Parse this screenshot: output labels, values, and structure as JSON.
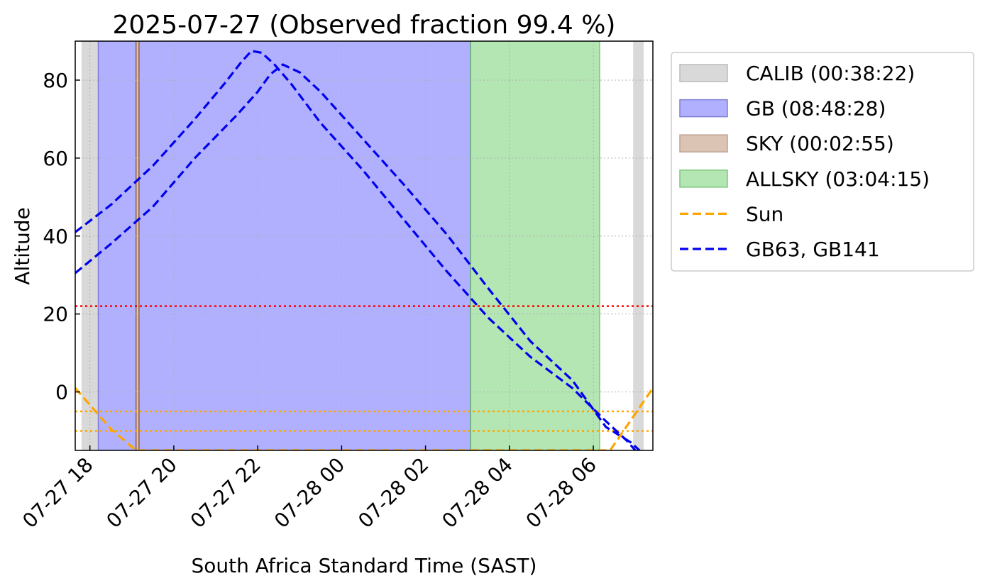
{
  "chart_data": {
    "type": "line",
    "title": "2025-07-27 (Observed fraction 99.4 %)",
    "xlabel": "South Africa Standard Time (SAST)",
    "ylabel": "Altitude",
    "x_unit": "hours (SAST) from 2025-07-27 00:00",
    "xlim": [
      17.65,
      31.42
    ],
    "ylim": [
      -15,
      90
    ],
    "grid": true,
    "legend_position": "outside-right",
    "x_ticks": [
      {
        "value": 18,
        "label": "07-27 18"
      },
      {
        "value": 20,
        "label": "07-27 20"
      },
      {
        "value": 22,
        "label": "07-27 22"
      },
      {
        "value": 24,
        "label": "07-28 00"
      },
      {
        "value": 26,
        "label": "07-28 02"
      },
      {
        "value": 28,
        "label": "07-28 04"
      },
      {
        "value": 30,
        "label": "07-28 06"
      }
    ],
    "y_ticks": [
      {
        "value": 0,
        "label": "0"
      },
      {
        "value": 20,
        "label": "20"
      },
      {
        "value": 40,
        "label": "40"
      },
      {
        "value": 60,
        "label": "60"
      },
      {
        "value": 80,
        "label": "80"
      }
    ],
    "spans": [
      {
        "name": "CALIB",
        "start": 17.8,
        "end": 18.2,
        "color": "#d9d9d9"
      },
      {
        "name": "GB",
        "start": 18.2,
        "end": 27.07,
        "color": "#b0b0ff"
      },
      {
        "name": "SKY",
        "start": 19.1,
        "end": 19.17,
        "color": "#dcc4b4"
      },
      {
        "name": "ALLSKY",
        "start": 27.07,
        "end": 30.15,
        "color": "#b3e6b3"
      },
      {
        "name": "CALIB",
        "start": 30.95,
        "end": 31.2,
        "color": "#d9d9d9"
      }
    ],
    "span_vlines": [
      {
        "x": 18.2,
        "color": "#7d7dd8"
      },
      {
        "x": 19.1,
        "color": "#8b5a4a"
      },
      {
        "x": 19.17,
        "color": "#8b5a4a"
      },
      {
        "x": 27.07,
        "color": "#5fa27a"
      },
      {
        "x": 30.15,
        "color": "#7cc77c"
      }
    ],
    "hlines": [
      {
        "y": 22,
        "color": "#ff0000"
      },
      {
        "y": -5,
        "color": "#ffa500"
      },
      {
        "y": -10,
        "color": "#ffa500"
      }
    ],
    "series": [
      {
        "name": "GB63",
        "color": "#0000ee",
        "style": "dashed",
        "x": [
          17.65,
          18.5,
          19.5,
          20.5,
          21.2,
          21.6,
          21.85,
          22.1,
          22.4,
          22.8,
          23.5,
          24.5,
          25.5,
          26.5,
          27.5,
          28.5,
          29.5,
          30.25,
          30.8,
          31.0
        ],
        "y": [
          41,
          48,
          58,
          70,
          79,
          84.5,
          87.5,
          87,
          84,
          79,
          69,
          57,
          44,
          31,
          19,
          9,
          1,
          -7,
          -12.5,
          -15
        ]
      },
      {
        "name": "GB141",
        "color": "#0000ee",
        "style": "dashed",
        "x": [
          17.65,
          18.5,
          19.5,
          20.5,
          21.5,
          22.0,
          22.3,
          22.6,
          23.0,
          23.5,
          24.5,
          25.5,
          26.5,
          27.5,
          28.5,
          29.5,
          30.3,
          30.9,
          31.1
        ],
        "y": [
          30.5,
          38,
          47.5,
          60,
          71,
          77,
          81.5,
          84,
          82,
          77,
          65,
          53,
          40.5,
          26.5,
          13,
          3,
          -9,
          -13,
          -15
        ]
      },
      {
        "name": "Sun",
        "color": "#ffa500",
        "style": "dashed",
        "x": [
          17.65,
          18.5,
          19.1,
          30.4,
          31.42
        ],
        "y": [
          1,
          -9.5,
          -15,
          -15,
          1
        ]
      }
    ],
    "legend": [
      {
        "label": "CALIB (00:38:22)",
        "kind": "patch",
        "color": "#d9d9d9",
        "edge": "#bbbbbb"
      },
      {
        "label": "GB (08:48:28)",
        "kind": "patch",
        "color": "#b0b0ff",
        "edge": "#7d7dd8"
      },
      {
        "label": "SKY (00:02:55)",
        "kind": "patch",
        "color": "#dcc4b4",
        "edge": "#c0a090"
      },
      {
        "label": "ALLSKY (03:04:15)",
        "kind": "patch",
        "color": "#b3e6b3",
        "edge": "#7cc77c"
      },
      {
        "label": "Sun",
        "kind": "line",
        "color": "#ffa500"
      },
      {
        "label": "GB63, GB141",
        "kind": "line",
        "color": "#0000ee"
      }
    ]
  }
}
